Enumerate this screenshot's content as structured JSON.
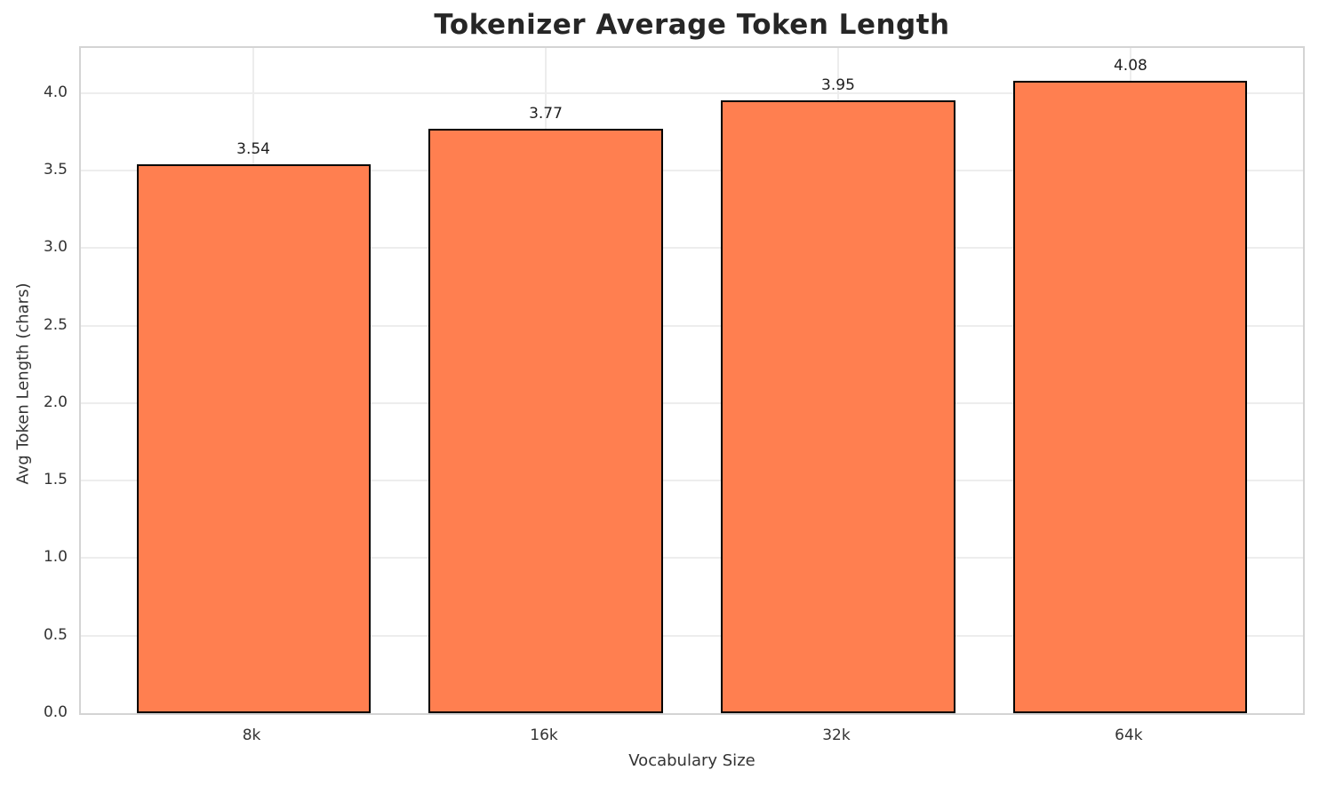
{
  "figure": {
    "background": "#ffffff"
  },
  "chart_data": {
    "type": "bar",
    "title": "Tokenizer Average Token Length",
    "xlabel": "Vocabulary Size",
    "ylabel": "Avg Token Length (chars)",
    "categories": [
      "8k",
      "16k",
      "32k",
      "64k"
    ],
    "values": [
      3.54,
      3.77,
      3.95,
      4.08
    ],
    "value_labels": [
      "3.54",
      "3.77",
      "3.95",
      "4.08"
    ],
    "ylim": [
      0,
      4.29
    ],
    "yticks": [
      0,
      0.5,
      1,
      1.5,
      2,
      2.5,
      3,
      3.5,
      4
    ],
    "ytick_labels": [
      "0.0",
      "0.5",
      "1.0",
      "1.5",
      "2.0",
      "2.5",
      "3.0",
      "3.5",
      "4.0"
    ],
    "xlim": [
      -0.59,
      3.59
    ],
    "bar_width": 0.8,
    "grid": true,
    "legend": "none",
    "colors": {
      "bar_fill": "#FF7F50",
      "bar_edge": "#000000",
      "grid": "#ededed",
      "spine": "#d4d4d4",
      "title_text": "#262626",
      "tick_text": "#333333",
      "annotation_text": "#1f1f1f",
      "background": "#ffffff"
    }
  }
}
